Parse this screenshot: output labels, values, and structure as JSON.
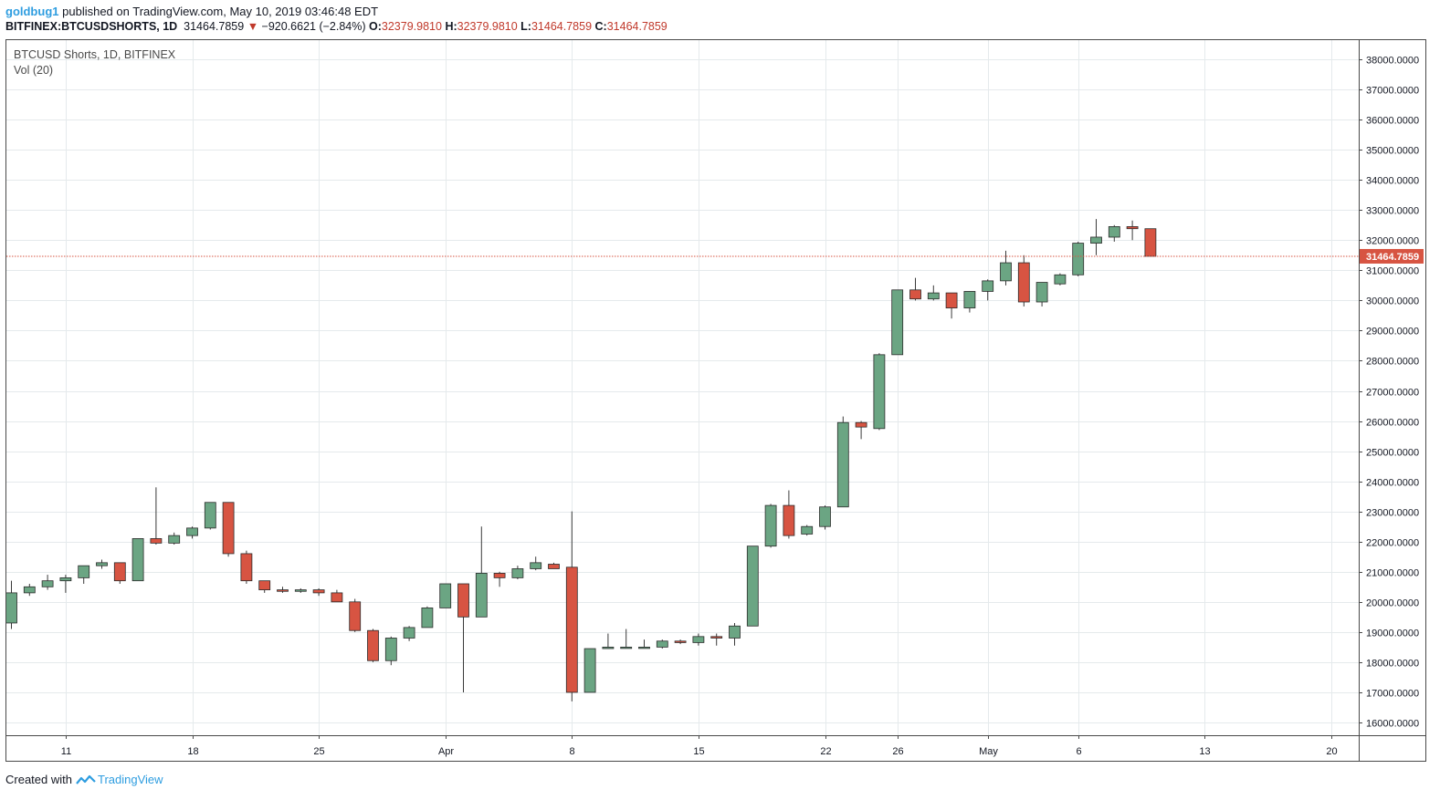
{
  "header": {
    "user": "goldbug1",
    "published_text": "published on TradingView.com, May 10, 2019 03:46:48 EDT",
    "symbol": "BITFINEX:BTCUSDSHORTS, 1D",
    "last": "31464.7859",
    "change_arrow": "▼",
    "change": "−920.6621 (−2.84%)",
    "o_label": "O:",
    "o_value": "32379.9810",
    "h_label": "H:",
    "h_value": "32379.9810",
    "l_label": "L:",
    "l_value": "31464.7859",
    "c_label": "C:",
    "c_value": "31464.7859"
  },
  "legend": {
    "series_label": "BTCUSD Shorts, 1D, BITFINEX",
    "volume_label": "Vol (20)"
  },
  "footer": {
    "created_with": "Created with",
    "brand": "TradingView",
    "logo_icon": "tradingview-logo-icon"
  },
  "colors": {
    "up": "#6ba583",
    "down": "#d75442",
    "wick": "#3a3a3a",
    "grid": "#e5eaec",
    "price_line": "#d75442",
    "brand": "#2e9de0"
  },
  "chart_data": {
    "type": "candlestick",
    "title": "BTCUSD Shorts, 1D, BITFINEX",
    "ylim": [
      15600,
      38600
    ],
    "y_ticks": [
      {
        "value": 16000,
        "label": "16000.0000"
      },
      {
        "value": 17000,
        "label": "17000.0000"
      },
      {
        "value": 18000,
        "label": "18000.0000"
      },
      {
        "value": 19000,
        "label": "19000.0000"
      },
      {
        "value": 20000,
        "label": "20000.0000"
      },
      {
        "value": 21000,
        "label": "21000.0000"
      },
      {
        "value": 22000,
        "label": "22000.0000"
      },
      {
        "value": 23000,
        "label": "23000.0000"
      },
      {
        "value": 24000,
        "label": "24000.0000"
      },
      {
        "value": 25000,
        "label": "25000.0000"
      },
      {
        "value": 26000,
        "label": "26000.0000"
      },
      {
        "value": 27000,
        "label": "27000.0000"
      },
      {
        "value": 28000,
        "label": "28000.0000"
      },
      {
        "value": 29000,
        "label": "29000.0000"
      },
      {
        "value": 30000,
        "label": "30000.0000"
      },
      {
        "value": 31000,
        "label": "31000.0000"
      },
      {
        "value": 32000,
        "label": "32000.0000"
      },
      {
        "value": 33000,
        "label": "33000.0000"
      },
      {
        "value": 34000,
        "label": "34000.0000"
      },
      {
        "value": 35000,
        "label": "35000.0000"
      },
      {
        "value": 36000,
        "label": "36000.0000"
      },
      {
        "value": 37000,
        "label": "37000.0000"
      },
      {
        "value": 38000,
        "label": "38000.0000"
      }
    ],
    "x_ticks": [
      {
        "index": 3,
        "label": "11"
      },
      {
        "index": 10,
        "label": "18"
      },
      {
        "index": 17,
        "label": "25"
      },
      {
        "index": 24,
        "label": "Apr"
      },
      {
        "index": 31,
        "label": "8"
      },
      {
        "index": 38,
        "label": "15"
      },
      {
        "index": 45,
        "label": "22"
      },
      {
        "index": 49,
        "label": "26"
      },
      {
        "index": 54,
        "label": "May"
      },
      {
        "index": 59,
        "label": "6"
      },
      {
        "index": 66,
        "label": "13"
      },
      {
        "index": 73,
        "label": "20"
      }
    ],
    "last_price": 31464.7859,
    "last_price_label": "31464.7859",
    "candles": [
      {
        "o": 19300,
        "h": 20700,
        "l": 19100,
        "c": 20300
      },
      {
        "o": 20300,
        "h": 20600,
        "l": 20200,
        "c": 20500
      },
      {
        "o": 20500,
        "h": 20900,
        "l": 20400,
        "c": 20700
      },
      {
        "o": 20700,
        "h": 20900,
        "l": 20300,
        "c": 20800
      },
      {
        "o": 20800,
        "h": 21200,
        "l": 20600,
        "c": 21200
      },
      {
        "o": 21200,
        "h": 21400,
        "l": 21100,
        "c": 21300
      },
      {
        "o": 21300,
        "h": 21300,
        "l": 20600,
        "c": 20700
      },
      {
        "o": 20700,
        "h": 22100,
        "l": 20700,
        "c": 22100
      },
      {
        "o": 22100,
        "h": 23800,
        "l": 21900,
        "c": 21950
      },
      {
        "o": 21950,
        "h": 22300,
        "l": 21900,
        "c": 22200
      },
      {
        "o": 22200,
        "h": 22500,
        "l": 22100,
        "c": 22450
      },
      {
        "o": 22450,
        "h": 23300,
        "l": 22400,
        "c": 23300
      },
      {
        "o": 23300,
        "h": 23300,
        "l": 21500,
        "c": 21600
      },
      {
        "o": 21600,
        "h": 21700,
        "l": 20600,
        "c": 20700
      },
      {
        "o": 20700,
        "h": 20700,
        "l": 20300,
        "c": 20400
      },
      {
        "o": 20400,
        "h": 20500,
        "l": 20300,
        "c": 20350
      },
      {
        "o": 20350,
        "h": 20450,
        "l": 20300,
        "c": 20400
      },
      {
        "o": 20400,
        "h": 20450,
        "l": 20200,
        "c": 20300
      },
      {
        "o": 20300,
        "h": 20400,
        "l": 20000,
        "c": 20000
      },
      {
        "o": 20000,
        "h": 20100,
        "l": 19000,
        "c": 19050
      },
      {
        "o": 19050,
        "h": 19100,
        "l": 18000,
        "c": 18050
      },
      {
        "o": 18050,
        "h": 18850,
        "l": 17900,
        "c": 18800
      },
      {
        "o": 18800,
        "h": 19200,
        "l": 18700,
        "c": 19150
      },
      {
        "o": 19150,
        "h": 19850,
        "l": 19150,
        "c": 19800
      },
      {
        "o": 19800,
        "h": 20600,
        "l": 19800,
        "c": 20600
      },
      {
        "o": 20600,
        "h": 20600,
        "l": 17000,
        "c": 19500
      },
      {
        "o": 19500,
        "h": 22500,
        "l": 19500,
        "c": 20950
      },
      {
        "o": 20950,
        "h": 21000,
        "l": 20500,
        "c": 20800
      },
      {
        "o": 20800,
        "h": 21200,
        "l": 20750,
        "c": 21100
      },
      {
        "o": 21100,
        "h": 21500,
        "l": 21050,
        "c": 21300
      },
      {
        "o": 21250,
        "h": 21300,
        "l": 21100,
        "c": 21100
      },
      {
        "o": 21150,
        "h": 23000,
        "l": 16700,
        "c": 17000
      },
      {
        "o": 17000,
        "h": 18450,
        "l": 17000,
        "c": 18450
      },
      {
        "o": 18450,
        "h": 18950,
        "l": 18450,
        "c": 18500
      },
      {
        "o": 18500,
        "h": 19100,
        "l": 18450,
        "c": 18500
      },
      {
        "o": 18500,
        "h": 18750,
        "l": 18450,
        "c": 18500
      },
      {
        "o": 18500,
        "h": 18750,
        "l": 18450,
        "c": 18700
      },
      {
        "o": 18700,
        "h": 18750,
        "l": 18600,
        "c": 18650
      },
      {
        "o": 18650,
        "h": 18950,
        "l": 18550,
        "c": 18850
      },
      {
        "o": 18850,
        "h": 18950,
        "l": 18550,
        "c": 18800
      },
      {
        "o": 18800,
        "h": 19300,
        "l": 18550,
        "c": 19200
      },
      {
        "o": 19200,
        "h": 21850,
        "l": 19200,
        "c": 21850
      },
      {
        "o": 21850,
        "h": 23250,
        "l": 21800,
        "c": 23200
      },
      {
        "o": 23200,
        "h": 23700,
        "l": 22100,
        "c": 22200
      },
      {
        "o": 22250,
        "h": 22550,
        "l": 22200,
        "c": 22500
      },
      {
        "o": 22500,
        "h": 23200,
        "l": 22400,
        "c": 23150
      },
      {
        "o": 23150,
        "h": 26150,
        "l": 23150,
        "c": 25950
      },
      {
        "o": 25950,
        "h": 26000,
        "l": 25400,
        "c": 25800
      },
      {
        "o": 25750,
        "h": 28250,
        "l": 25700,
        "c": 28200
      },
      {
        "o": 28200,
        "h": 30350,
        "l": 28200,
        "c": 30350
      },
      {
        "o": 30350,
        "h": 30750,
        "l": 30000,
        "c": 30050
      },
      {
        "o": 30050,
        "h": 30500,
        "l": 30000,
        "c": 30250
      },
      {
        "o": 30250,
        "h": 30250,
        "l": 29400,
        "c": 29750
      },
      {
        "o": 29750,
        "h": 30300,
        "l": 29600,
        "c": 30300
      },
      {
        "o": 30300,
        "h": 30700,
        "l": 30000,
        "c": 30650
      },
      {
        "o": 30650,
        "h": 31650,
        "l": 30500,
        "c": 31250
      },
      {
        "o": 31250,
        "h": 31500,
        "l": 29800,
        "c": 29950
      },
      {
        "o": 29950,
        "h": 30600,
        "l": 29800,
        "c": 30600
      },
      {
        "o": 30550,
        "h": 30900,
        "l": 30500,
        "c": 30850
      },
      {
        "o": 30850,
        "h": 31950,
        "l": 30800,
        "c": 31900
      },
      {
        "o": 31900,
        "h": 32700,
        "l": 31500,
        "c": 32100
      },
      {
        "o": 32100,
        "h": 32500,
        "l": 31950,
        "c": 32450
      },
      {
        "o": 32450,
        "h": 32650,
        "l": 32000,
        "c": 32380
      },
      {
        "o": 32379.981,
        "h": 32379.981,
        "l": 31464.7859,
        "c": 31464.7859
      }
    ]
  }
}
